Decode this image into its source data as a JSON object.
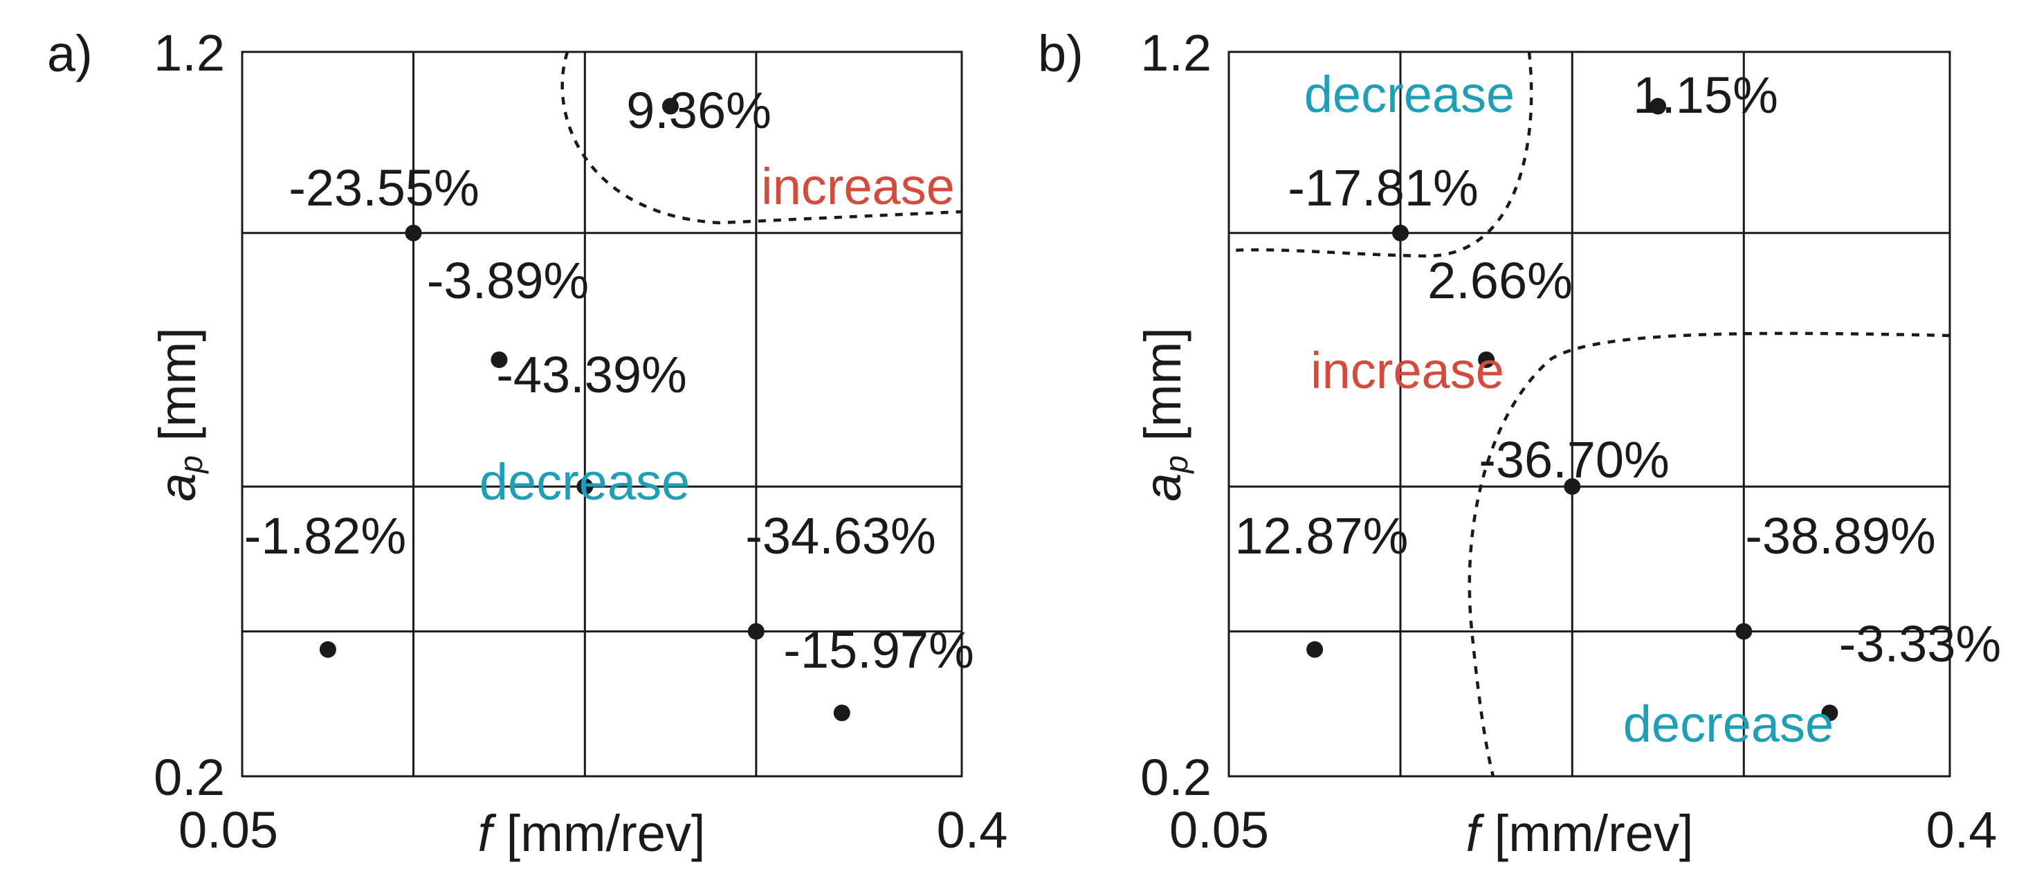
{
  "chart_data": [
    {
      "panel_label": "a)",
      "type": "scatter",
      "xlabel_symbol": "f",
      "xlabel_unit": "[mm/rev]",
      "ylabel_symbol": "a",
      "ylabel_subscript": "p",
      "ylabel_unit": "[mm]",
      "xlim": [
        0.05,
        0.4
      ],
      "ylim": [
        0.2,
        1.2
      ],
      "x_tick_labels": [
        "0.05",
        "0.4"
      ],
      "y_tick_labels": [
        "0.2",
        "1.2"
      ],
      "x_gridlines": [
        0.1333,
        0.2167,
        0.3
      ],
      "y_gridlines": [
        0.4,
        0.6,
        0.95
      ],
      "points": [
        {
          "x": 0.0917,
          "y": 0.375,
          "label": "-1.82%"
        },
        {
          "x": 0.1333,
          "y": 0.95,
          "label": "-23.55%"
        },
        {
          "x": 0.175,
          "y": 0.775,
          "label": "-3.89%"
        },
        {
          "x": 0.2167,
          "y": 0.6,
          "label": "-43.39%"
        },
        {
          "x": 0.2583,
          "y": 1.125,
          "label": "9.36%"
        },
        {
          "x": 0.3,
          "y": 0.4,
          "label": "-34.63%"
        },
        {
          "x": 0.3417,
          "y": 0.2875,
          "label": "-15.97%"
        }
      ],
      "region_labels": [
        {
          "text": "increase",
          "color": "#d64a3c"
        },
        {
          "text": "decrease",
          "color": "#1e9fb8"
        }
      ]
    },
    {
      "panel_label": "b)",
      "type": "scatter",
      "xlabel_symbol": "f",
      "xlabel_unit": "[mm/rev]",
      "ylabel_symbol": "a",
      "ylabel_subscript": "p",
      "ylabel_unit": "[mm]",
      "xlim": [
        0.05,
        0.4
      ],
      "ylim": [
        0.2,
        1.2
      ],
      "x_tick_labels": [
        "0.05",
        "0.4"
      ],
      "y_tick_labels": [
        "0.2",
        "1.2"
      ],
      "x_gridlines": [
        0.1333,
        0.2167,
        0.3
      ],
      "y_gridlines": [
        0.4,
        0.6,
        0.95
      ],
      "points": [
        {
          "x": 0.0917,
          "y": 0.375,
          "label": "12.87%"
        },
        {
          "x": 0.1333,
          "y": 0.95,
          "label": "-17.81%"
        },
        {
          "x": 0.175,
          "y": 0.775,
          "label": "2.66%"
        },
        {
          "x": 0.2167,
          "y": 0.6,
          "label": "-36.70%"
        },
        {
          "x": 0.2583,
          "y": 1.125,
          "label": "1.15%"
        },
        {
          "x": 0.3,
          "y": 0.4,
          "label": "-38.89%"
        },
        {
          "x": 0.3417,
          "y": 0.2875,
          "label": "-3.33%"
        }
      ],
      "region_labels": [
        {
          "text": "decrease",
          "color": "#1e9fb8"
        },
        {
          "text": "increase",
          "color": "#d64a3c"
        },
        {
          "text": "decrease",
          "color": "#1e9fb8"
        }
      ]
    }
  ]
}
